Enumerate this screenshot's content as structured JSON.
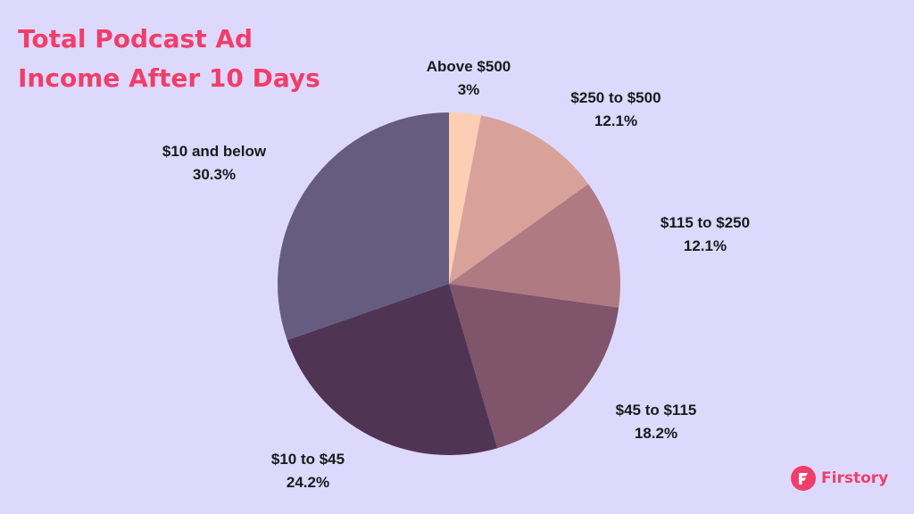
{
  "page": {
    "title_line1": "Total Podcast Ad",
    "title_line2": "Income After 10 Days"
  },
  "brand": {
    "name": "Firstory",
    "color": "#f03e6a",
    "icon": "firstory-logo-icon"
  },
  "colors": {
    "background": "#dcd9fd",
    "title": "#f03e6a"
  },
  "chart_data": {
    "type": "pie",
    "title": "Total Podcast Ad Income After 10 Days",
    "start_angle_deg": 0,
    "direction": "clockwise",
    "slices": [
      {
        "label": "Above $500",
        "value": 3,
        "display": "3%",
        "color": "#fccfb4"
      },
      {
        "label": "$250 to $500",
        "value": 12.1,
        "display": "12.1%",
        "color": "#d8a29b"
      },
      {
        "label": "$115 to $250",
        "value": 12.1,
        "display": "12.1%",
        "color": "#af7a82"
      },
      {
        "label": "$45 to $115",
        "value": 18.2,
        "display": "18.2%",
        "color": "#80546a"
      },
      {
        "label": "$10 to $45",
        "value": 24.2,
        "display": "24.2%",
        "color": "#503453"
      },
      {
        "label": "$10 and below",
        "value": 30.3,
        "display": "30.3%",
        "color": "#665b80"
      }
    ]
  }
}
